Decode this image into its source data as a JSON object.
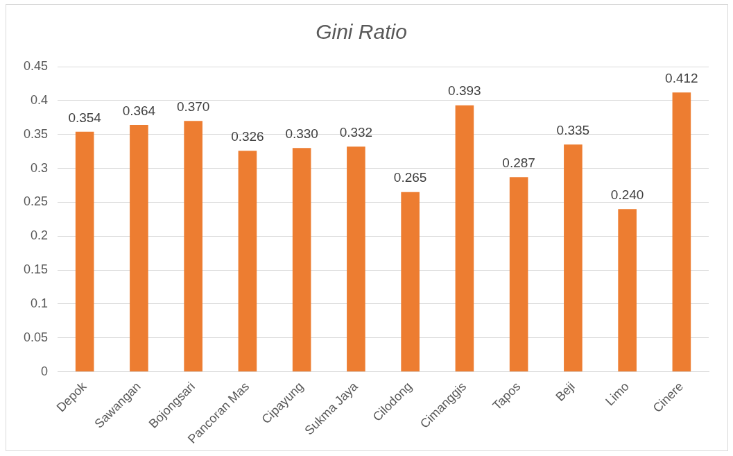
{
  "chart_data": {
    "type": "bar",
    "title": "Gini Ratio",
    "categories": [
      "Depok",
      "Sawangan",
      "Bojongsari",
      "Pancoran Mas",
      "Cipayung",
      "Sukma Jaya",
      "Cilodong",
      "Cimanggis",
      "Tapos",
      "Beji",
      "Limo",
      "Cinere"
    ],
    "values": [
      0.354,
      0.364,
      0.37,
      0.326,
      0.33,
      0.332,
      0.265,
      0.393,
      0.287,
      0.335,
      0.24,
      0.412
    ],
    "value_labels": [
      "0.354",
      "0.364",
      "0.370",
      "0.326",
      "0.330",
      "0.332",
      "0.265",
      "0.393",
      "0.287",
      "0.335",
      "0.240",
      "0.412"
    ],
    "color": "#ed7d31",
    "ylim": [
      0,
      0.45
    ],
    "yticks": [
      0,
      0.05,
      0.1,
      0.15,
      0.2,
      0.25,
      0.3,
      0.35,
      0.4,
      0.45
    ],
    "grid": "y",
    "legend": false
  }
}
